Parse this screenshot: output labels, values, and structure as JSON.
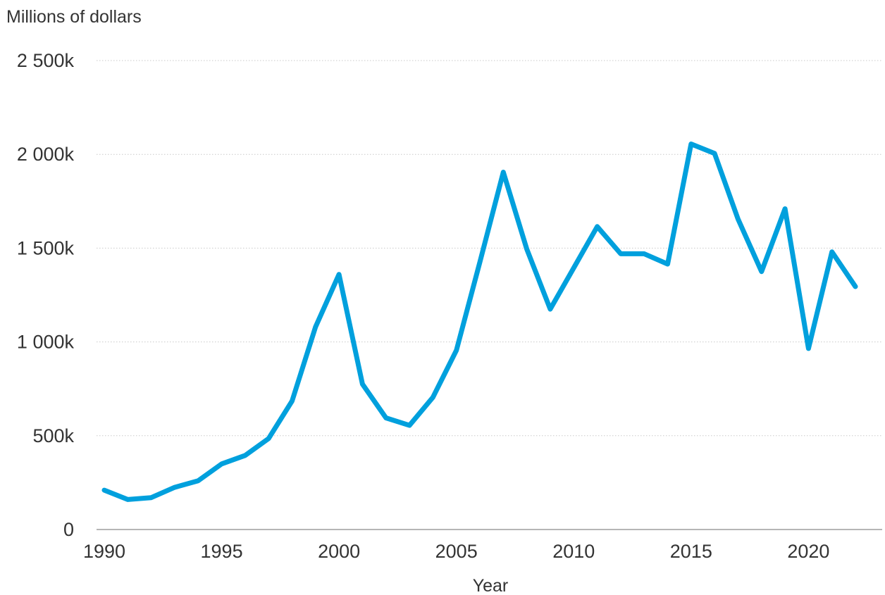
{
  "chart_data": {
    "type": "line",
    "ylabel": "Millions of dollars",
    "xlabel": "Year",
    "x": [
      1990,
      1991,
      1992,
      1993,
      1994,
      1995,
      1996,
      1997,
      1998,
      1999,
      2000,
      2001,
      2002,
      2003,
      2004,
      2005,
      2006,
      2007,
      2008,
      2009,
      2010,
      2011,
      2012,
      2013,
      2014,
      2015,
      2016,
      2017,
      2018,
      2019,
      2020,
      2021,
      2022
    ],
    "series": [
      {
        "values": [
          210,
          160,
          170,
          225,
          260,
          350,
          395,
          485,
          685,
          1080,
          1360,
          775,
          595,
          555,
          705,
          955,
          1425,
          1905,
          1495,
          1175,
          1395,
          1615,
          1470,
          1470,
          1415,
          2055,
          2005,
          1655,
          1375,
          1710,
          965,
          1480,
          1295
        ],
        "color": "#00a0dd"
      }
    ],
    "ylim": [
      0,
      2500
    ],
    "y_ticks": [
      0,
      500,
      1000,
      1500,
      2000,
      2500
    ],
    "y_tick_labels": [
      "0",
      "500k",
      "1 000k",
      "1 500k",
      "2 000k",
      "2 500k"
    ],
    "xlim": [
      1990,
      2022
    ],
    "x_ticks": [
      1990,
      1995,
      2000,
      2005,
      2010,
      2015,
      2020
    ],
    "x_tick_labels": [
      "1990",
      "1995",
      "2000",
      "2005",
      "2010",
      "2015",
      "2020"
    ],
    "grid": true,
    "grid_style": "dotted horizontal"
  }
}
